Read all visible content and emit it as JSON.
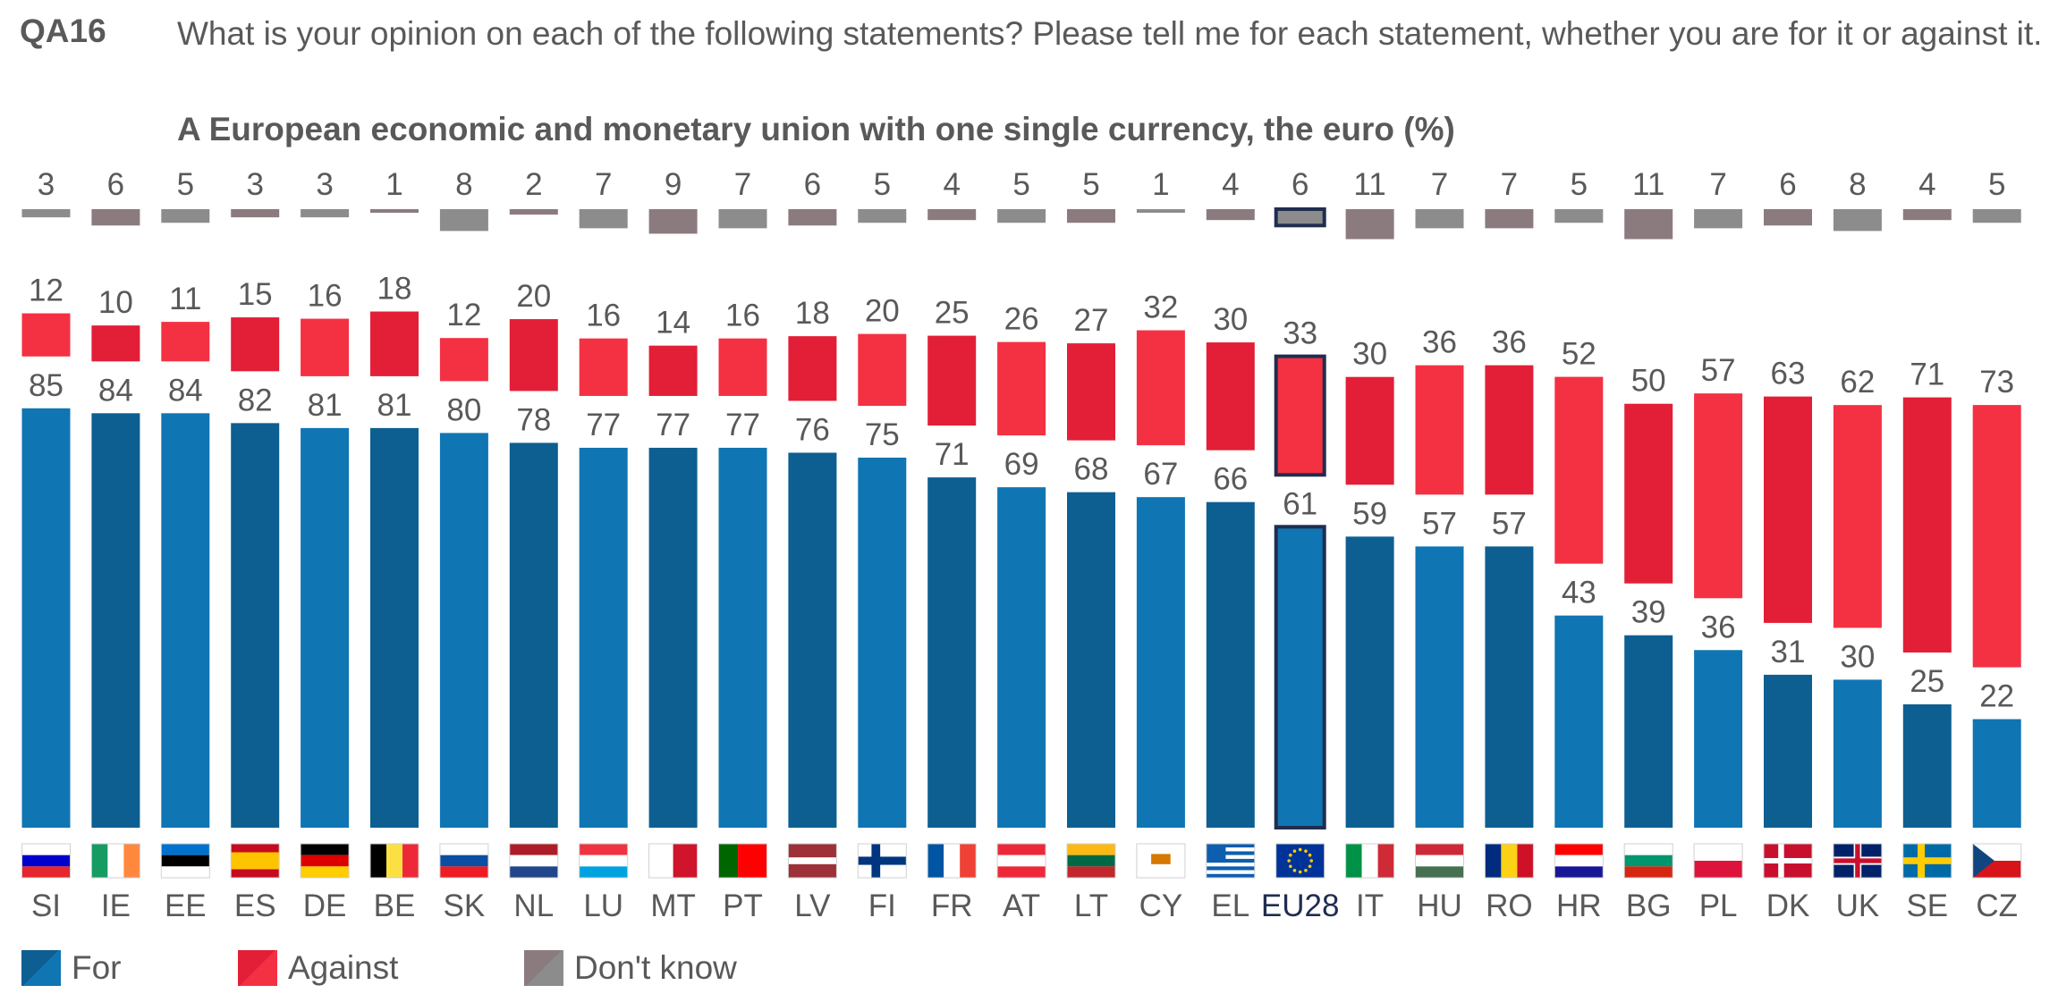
{
  "header": {
    "code": "QA16",
    "question": "What is your opinion on each of the following statements? Please tell me for each statement, whether you are for it or against it.",
    "subtitle": "A European economic and monetary union with one single currency, the euro  (%)"
  },
  "colors": {
    "for_light": "#1075B3",
    "for_dark": "#0D5F91",
    "against_light": "#F43142",
    "against_dark": "#E21F37",
    "dontknow_light": "#8C8C8C",
    "dontknow_dark": "#8C7B7E",
    "eu_outline": "#1F2D4F"
  },
  "legend": [
    {
      "label": "For",
      "color": "#1075B3"
    },
    {
      "label": "Against",
      "color": "#F43142"
    },
    {
      "label": "Don't know",
      "color": "#8C7B7E"
    }
  ],
  "chart_data": {
    "type": "bar",
    "stacked": true,
    "title": "A European economic and monetary union with one single currency, the euro  (%)",
    "categories": [
      "SI",
      "IE",
      "EE",
      "ES",
      "DE",
      "BE",
      "SK",
      "NL",
      "LU",
      "MT",
      "PT",
      "LV",
      "FI",
      "FR",
      "AT",
      "LT",
      "CY",
      "EL",
      "EU28",
      "IT",
      "HU",
      "RO",
      "HR",
      "BG",
      "PL",
      "DK",
      "UK",
      "SE",
      "CZ"
    ],
    "highlight": "EU28",
    "series": [
      {
        "name": "For",
        "values": [
          85,
          84,
          84,
          82,
          81,
          81,
          80,
          78,
          77,
          77,
          77,
          76,
          75,
          71,
          69,
          68,
          67,
          66,
          61,
          59,
          57,
          57,
          43,
          39,
          36,
          31,
          30,
          25,
          22
        ]
      },
      {
        "name": "Against",
        "values": [
          12,
          10,
          11,
          15,
          16,
          18,
          12,
          20,
          16,
          14,
          16,
          18,
          20,
          25,
          26,
          27,
          32,
          30,
          33,
          30,
          36,
          36,
          52,
          50,
          57,
          63,
          62,
          71,
          73
        ]
      },
      {
        "name": "Don't know",
        "values": [
          3,
          6,
          5,
          3,
          3,
          1,
          8,
          2,
          7,
          9,
          7,
          6,
          5,
          4,
          5,
          5,
          1,
          4,
          6,
          11,
          7,
          7,
          5,
          11,
          7,
          6,
          8,
          4,
          5
        ]
      }
    ],
    "flags": [
      "SI",
      "IE",
      "EE",
      "ES",
      "DE",
      "BE",
      "SK",
      "NL",
      "LU",
      "MT",
      "PT",
      "LV",
      "FI",
      "FR",
      "AT",
      "LT",
      "CY",
      "EL",
      "EU",
      "IT",
      "HU",
      "RO",
      "HR",
      "BG",
      "PL",
      "DK",
      "UK",
      "SE",
      "CZ"
    ]
  }
}
